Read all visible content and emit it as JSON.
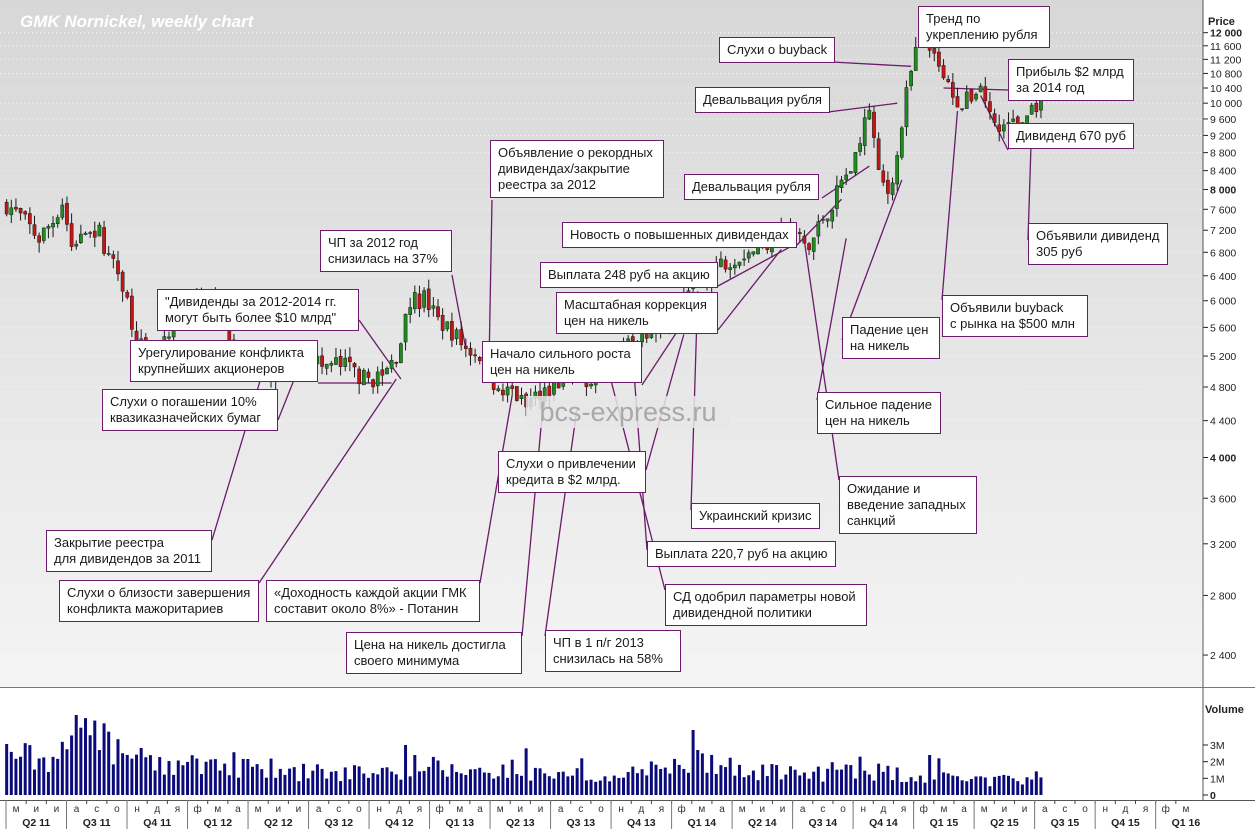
{
  "title": "GMK Nornickel, weekly chart",
  "watermark": "bcs-express.ru",
  "price_axis_title": "Price",
  "volume_axis_title": "Volume",
  "colors": {
    "up": "#1e8c1e",
    "down": "#c61515",
    "volume": "#0a0a7a",
    "annotation_border": "#6a1b6a",
    "price_panel_top": "#d7d7d7",
    "price_panel_bottom": "#f4f4f4"
  },
  "chart_data": {
    "type": "candlestick",
    "interval": "weekly",
    "yscale": "log",
    "ylim": [
      2250,
      12400
    ],
    "price_ticks": [
      "12 000",
      "11 600",
      "11 200",
      "10 800",
      "10 400",
      "10 000",
      "9 600",
      "9 200",
      "8 800",
      "8 400",
      "8 000",
      "7 600",
      "7 200",
      "6 800",
      "6 400",
      "6 000",
      "5 600",
      "5 200",
      "4 800",
      "4 400",
      "4 000",
      "3 600",
      "3 200",
      "2 800",
      "2 400"
    ],
    "bold_price_ticks": [
      "12 000",
      "8 000",
      "4 000"
    ],
    "volume_ticks": [
      "3M",
      "2M",
      "1M",
      "0"
    ],
    "month_letters": [
      "м",
      "и",
      "и",
      "а",
      "с",
      "о",
      "н",
      "д",
      "я",
      "ф",
      "м",
      "а",
      "м",
      "и",
      "и",
      "а",
      "с",
      "о",
      "н",
      "д",
      "я",
      "ф",
      "м",
      "а",
      "м",
      "и",
      "и",
      "а",
      "с",
      "о",
      "н",
      "д",
      "я",
      "ф",
      "м",
      "а",
      "м",
      "и",
      "и",
      "а",
      "с",
      "о",
      "н",
      "д",
      "я",
      "ф",
      "м",
      "а",
      "м",
      "и",
      "и",
      "а",
      "с",
      "о",
      "н",
      "д",
      "я",
      "ф",
      "м",
      "а",
      "м",
      "и",
      "и",
      "а",
      "с",
      "о",
      "н",
      "д",
      "я",
      "ф",
      "м",
      "а",
      "м"
    ],
    "quarters": [
      "Q2 11",
      "Q3 11",
      "Q4 11",
      "Q1 12",
      "Q2 12",
      "Q3 12",
      "Q4 12",
      "Q1 13",
      "Q2 13",
      "Q3 13",
      "Q4 13",
      "Q1 14",
      "Q2 14",
      "Q3 14",
      "Q4 14",
      "Q1 15",
      "Q2 15",
      "Q3 15",
      "Q4 15",
      "Q1 16"
    ],
    "close_path": [
      [
        "2011-05-02",
        7700
      ],
      [
        "2011-05-23",
        7450
      ],
      [
        "2011-06-20",
        7050
      ],
      [
        "2011-07-11",
        7380
      ],
      [
        "2011-07-25",
        7750
      ],
      [
        "2011-08-08",
        6900
      ],
      [
        "2011-08-29",
        7300
      ],
      [
        "2011-09-19",
        7150
      ],
      [
        "2011-10-03",
        6700
      ],
      [
        "2011-10-24",
        6300
      ],
      [
        "2011-11-07",
        5700
      ],
      [
        "2011-11-28",
        5150
      ],
      [
        "2011-12-19",
        5250
      ],
      [
        "2012-01-16",
        5600
      ],
      [
        "2012-02-06",
        5900
      ],
      [
        "2012-02-27",
        5950
      ],
      [
        "2012-03-19",
        5850
      ],
      [
        "2012-04-09",
        5350
      ],
      [
        "2012-05-07",
        5000
      ],
      [
        "2012-05-28",
        4950
      ],
      [
        "2012-06-18",
        4900
      ],
      [
        "2012-07-09",
        5250
      ],
      [
        "2012-07-30",
        5300
      ],
      [
        "2012-08-20",
        5050
      ],
      [
        "2012-09-10",
        5100
      ],
      [
        "2012-10-01",
        5050
      ],
      [
        "2012-10-22",
        4900
      ],
      [
        "2012-11-19",
        4920
      ],
      [
        "2012-12-10",
        5200
      ],
      [
        "2012-12-31",
        5950
      ],
      [
        "2013-01-21",
        6050
      ],
      [
        "2013-02-11",
        5700
      ],
      [
        "2013-03-04",
        5550
      ],
      [
        "2013-03-25",
        5300
      ],
      [
        "2013-04-22",
        5200
      ],
      [
        "2013-05-13",
        4700
      ],
      [
        "2013-06-03",
        4750
      ],
      [
        "2013-06-24",
        4550
      ],
      [
        "2013-07-15",
        4750
      ],
      [
        "2013-08-12",
        4850
      ],
      [
        "2013-09-02",
        4950
      ],
      [
        "2013-09-30",
        4900
      ],
      [
        "2013-10-21",
        5150
      ],
      [
        "2013-11-18",
        5250
      ],
      [
        "2013-12-09",
        5500
      ],
      [
        "2014-01-13",
        5700
      ],
      [
        "2014-02-03",
        5900
      ],
      [
        "2014-02-24",
        6200
      ],
      [
        "2014-03-17",
        6350
      ],
      [
        "2014-04-07",
        6550
      ],
      [
        "2014-04-28",
        6700
      ],
      [
        "2014-06-02",
        6850
      ],
      [
        "2014-06-30",
        7050
      ],
      [
        "2014-07-21",
        7250
      ],
      [
        "2014-08-11",
        7050
      ],
      [
        "2014-08-25",
        6850
      ],
      [
        "2014-09-15",
        7450
      ],
      [
        "2014-09-29",
        7700
      ],
      [
        "2014-10-13",
        8150
      ],
      [
        "2014-11-03",
        8600
      ],
      [
        "2014-11-24",
        9900
      ],
      [
        "2014-12-08",
        8250
      ],
      [
        "2014-12-22",
        7950
      ],
      [
        "2015-01-05",
        8700
      ],
      [
        "2015-01-19",
        10200
      ],
      [
        "2015-02-02",
        11400
      ],
      [
        "2015-02-16",
        12200
      ],
      [
        "2015-03-02",
        11200
      ],
      [
        "2015-03-16",
        10600
      ],
      [
        "2015-03-30",
        10300
      ],
      [
        "2015-04-13",
        9900
      ],
      [
        "2015-04-27",
        10200
      ],
      [
        "2015-05-11",
        10500
      ],
      [
        "2015-05-25",
        9700
      ],
      [
        "2015-06-08",
        9300
      ],
      [
        "2015-06-22",
        9600
      ],
      [
        "2015-07-06",
        9300
      ],
      [
        "2015-07-20",
        9700
      ],
      [
        "2015-08-03",
        10000
      ],
      [
        "2015-08-10",
        10100
      ]
    ],
    "volume_path": [
      [
        "2011-05-02",
        2.7
      ],
      [
        "2011-06-20",
        2.2
      ],
      [
        "2011-07-25",
        2.5
      ],
      [
        "2011-08-08",
        3.2
      ],
      [
        "2011-09-05",
        3.5
      ],
      [
        "2011-09-19",
        3.6
      ],
      [
        "2011-10-17",
        2.6
      ],
      [
        "2011-12-19",
        1.7
      ],
      [
        "2012-03-19",
        2.0
      ],
      [
        "2012-06-18",
        1.6
      ],
      [
        "2012-09-10",
        1.3
      ],
      [
        "2012-12-10",
        1.5
      ],
      [
        "2012-12-31",
        2.0
      ],
      [
        "2013-03-04",
        1.5
      ],
      [
        "2013-06-03",
        1.6
      ],
      [
        "2013-09-02",
        1.3
      ],
      [
        "2013-12-09",
        1.6
      ],
      [
        "2014-02-24",
        1.8
      ],
      [
        "2014-03-17",
        2.4
      ],
      [
        "2014-06-02",
        1.4
      ],
      [
        "2014-09-15",
        1.4
      ],
      [
        "2014-11-03",
        1.7
      ],
      [
        "2014-12-22",
        1.4
      ],
      [
        "2015-02-16",
        1.2
      ],
      [
        "2015-04-27",
        0.9
      ],
      [
        "2015-08-10",
        1.1
      ]
    ],
    "volume_spikes": [
      [
        "2011-08-15",
        4.8
      ],
      [
        "2011-09-26",
        4.3
      ],
      [
        "2011-10-03",
        3.8
      ],
      [
        "2012-12-24",
        3.0
      ],
      [
        "2013-01-07",
        2.4
      ],
      [
        "2013-06-24",
        2.8
      ],
      [
        "2013-09-16",
        2.2
      ],
      [
        "2014-03-03",
        3.9
      ],
      [
        "2014-03-10",
        2.7
      ],
      [
        "2014-11-10",
        2.3
      ],
      [
        "2015-02-23",
        2.4
      ],
      [
        "2015-03-09",
        2.2
      ]
    ],
    "annotations": [
      {
        "text": "Слухи о buyback",
        "date": "2015-01-26",
        "price": 11000
      },
      {
        "text": "Тренд по\nукреплению рубля",
        "date": "2015-02-16",
        "price": 12100
      },
      {
        "text": "Девальвация рубля",
        "date": "2015-01-05",
        "price": 10000
      },
      {
        "text": "Прибыль $2 млрд\nза 2014 год",
        "date": "2015-03-16",
        "price": 10400
      },
      {
        "text": "Дивиденд 670 руб",
        "date": "2015-05-11",
        "price": 10200
      },
      {
        "text": "Объявление о рекордных\nдивидендах/закрытие\nреестра за 2012",
        "date": "2013-04-29",
        "price": 5100
      },
      {
        "text": "Девальвация рубля",
        "date": "2014-11-24",
        "price": 8500
      },
      {
        "text": "Новость о повышенных дивидендах",
        "date": "2014-10-13",
        "price": 7800
      },
      {
        "text": "Выплата 248 руб на акцию",
        "date": "2014-07-28",
        "price": 6900
      },
      {
        "text": "ЧП за 2012 год\nснизилась на 37%",
        "date": "2013-03-25",
        "price": 5300
      },
      {
        "text": "Масштабная коррекция\nцен на никель",
        "date": "2014-07-14",
        "price": 6850
      },
      {
        "text": "Объявили дивиденд\n305 руб",
        "date": "2015-07-27",
        "price": 9500
      },
      {
        "text": "\"Дивиденды за 2012-2014 гг.\nмогут быть более $10 млрд\"",
        "date": "2012-12-17",
        "price": 4900
      },
      {
        "text": "Урегулирование конфликта\nкрупнейших акционеров",
        "date": "2012-12-03",
        "price": 4850
      },
      {
        "text": "Объявили buyback\nс рынка на $500 млн",
        "date": "2015-04-06",
        "price": 9800
      },
      {
        "text": "Падение цен\nна никель",
        "date": "2015-01-12",
        "price": 8200
      },
      {
        "text": "Начало сильного роста\nцен на никель",
        "date": "2014-03-03",
        "price": 5900
      },
      {
        "text": "Слухи о погашении 10%\nквазиказначейских бумаг",
        "date": "2012-07-23",
        "price": 5200
      },
      {
        "text": "Сильное падение\nцен на никель",
        "date": "2014-10-20",
        "price": 7050
      },
      {
        "text": "Слухи о привлечении\nкредита в $2 млрд.",
        "date": "2014-02-17",
        "price": 5500
      },
      {
        "text": "Ожидание и\nвведение западных\nсанкций",
        "date": "2014-08-18",
        "price": 7000
      },
      {
        "text": "Украинский кризис",
        "date": "2014-03-10",
        "price": 6150
      },
      {
        "text": "Закрытие реестра\nдля дивидендов за 2011",
        "date": "2012-05-21",
        "price": 4950
      },
      {
        "text": "Выплата 220,7 руб на акцию",
        "date": "2013-12-02",
        "price": 5200
      },
      {
        "text": "Слухи о близости завершения\nконфликта мажоритариев",
        "date": "2012-12-10",
        "price": 4900
      },
      {
        "text": "«Доходность каждой акции ГМК\nсоставит около 8%» - Потанин",
        "date": "2013-06-03",
        "price": 4700
      },
      {
        "text": "СД одобрил параметры новой\nдивидендной политики",
        "date": "2013-10-28",
        "price": 4950
      },
      {
        "text": "Цена на никель достигла\nсвоего минимума",
        "date": "2013-07-22",
        "price": 4800
      },
      {
        "text": "ЧП в 1 п/г 2013\nснизилась на 58%",
        "date": "2013-09-09",
        "price": 4550
      }
    ]
  }
}
